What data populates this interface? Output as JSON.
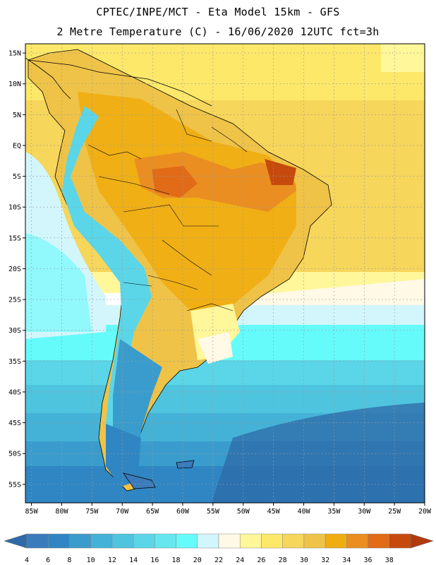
{
  "header": {
    "line1": "CPTEC/INPE/MCT -  Eta Model 15km - GFS",
    "line2": "2 Metre Temperature (C) - 16/06/2020 12UTC fct=3h"
  },
  "map": {
    "lat_ticks": [
      "15N",
      "10N",
      "5N",
      "EQ",
      "5S",
      "10S",
      "15S",
      "20S",
      "25S",
      "30S",
      "35S",
      "40S",
      "45S",
      "50S",
      "55S"
    ],
    "lon_ticks": [
      "85W",
      "80W",
      "75W",
      "70W",
      "65W",
      "60W",
      "55W",
      "50W",
      "45W",
      "40W",
      "35W",
      "30W",
      "25W",
      "20W"
    ],
    "lat_values": [
      15,
      10,
      5,
      0,
      -5,
      -10,
      -15,
      -20,
      -25,
      -30,
      -35,
      -40,
      -45,
      -50,
      -55
    ],
    "lon_values": [
      -85,
      -80,
      -75,
      -70,
      -65,
      -60,
      -55,
      -50,
      -45,
      -40,
      -35,
      -30,
      -25,
      -20
    ],
    "lat_range": [
      -58,
      16.5
    ],
    "lon_range": [
      -86,
      -20
    ]
  },
  "legend": {
    "labels": [
      "4",
      "6",
      "8",
      "10",
      "12",
      "14",
      "16",
      "18",
      "20",
      "22",
      "24",
      "26",
      "28",
      "30",
      "32",
      "34",
      "36",
      "38"
    ],
    "colors": [
      "#3a7bbb",
      "#2f86c2",
      "#3a9ccc",
      "#44b2d6",
      "#4fc4de",
      "#5bd6e8",
      "#67e6f0",
      "#66fbfb",
      "#d2f6fc",
      "#fff9e6",
      "#fff79a",
      "#fde86a",
      "#f6d65b",
      "#efc348",
      "#f0ad10",
      "#ea8e22",
      "#e16b17",
      "#c64a0d"
    ],
    "low_arrow_color": "#2e6aa8",
    "high_arrow_color": "#b33a0d"
  }
}
